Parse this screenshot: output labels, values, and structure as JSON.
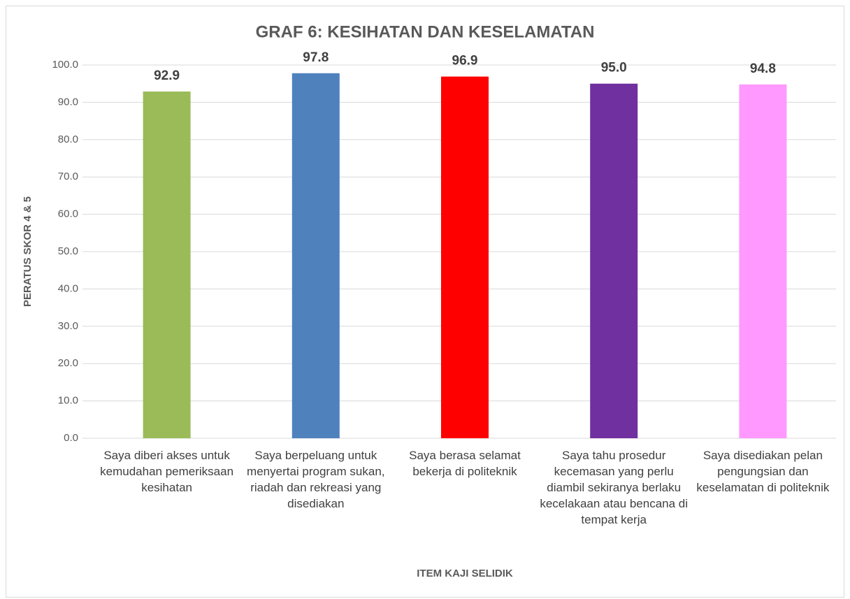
{
  "chart_data": {
    "type": "bar",
    "title": "GRAF 6: KESIHATAN DAN KESELAMATAN",
    "y_label": "PERATUS SKOR 4 & 5",
    "x_label": "ITEM KAJI SELIDIK",
    "categories": [
      "Saya diberi akses untuk kemudahan pemeriksaan kesihatan",
      "Saya berpeluang untuk menyertai program sukan, riadah dan rekreasi yang disediakan",
      "Saya berasa selamat bekerja di politeknik",
      "Saya tahu prosedur kecemasan yang perlu diambil sekiranya berlaku kecelakaan atau bencana di tempat kerja",
      "Saya disediakan pelan pengungsian dan keselamatan di politeknik"
    ],
    "values": [
      92.9,
      97.8,
      96.9,
      95.0,
      94.8
    ],
    "value_labels": [
      "92.9",
      "97.8",
      "96.9",
      "95.0",
      "94.8"
    ],
    "colors": [
      "#9bbb59",
      "#4f81bd",
      "#ff0000",
      "#7030a0",
      "#ff99ff"
    ],
    "ylim": [
      0,
      100
    ],
    "yticks": [
      {
        "value": 0,
        "label": "0.0"
      },
      {
        "value": 10,
        "label": "10.0"
      },
      {
        "value": 20,
        "label": "20.0"
      },
      {
        "value": 30,
        "label": "30.0"
      },
      {
        "value": 40,
        "label": "40.0"
      },
      {
        "value": 50,
        "label": "50.0"
      },
      {
        "value": 60,
        "label": "60.0"
      },
      {
        "value": 70,
        "label": "70.0"
      },
      {
        "value": 80,
        "label": "80.0"
      },
      {
        "value": 90,
        "label": "90.0"
      },
      {
        "value": 100,
        "label": "100.0"
      }
    ],
    "grid": true
  }
}
